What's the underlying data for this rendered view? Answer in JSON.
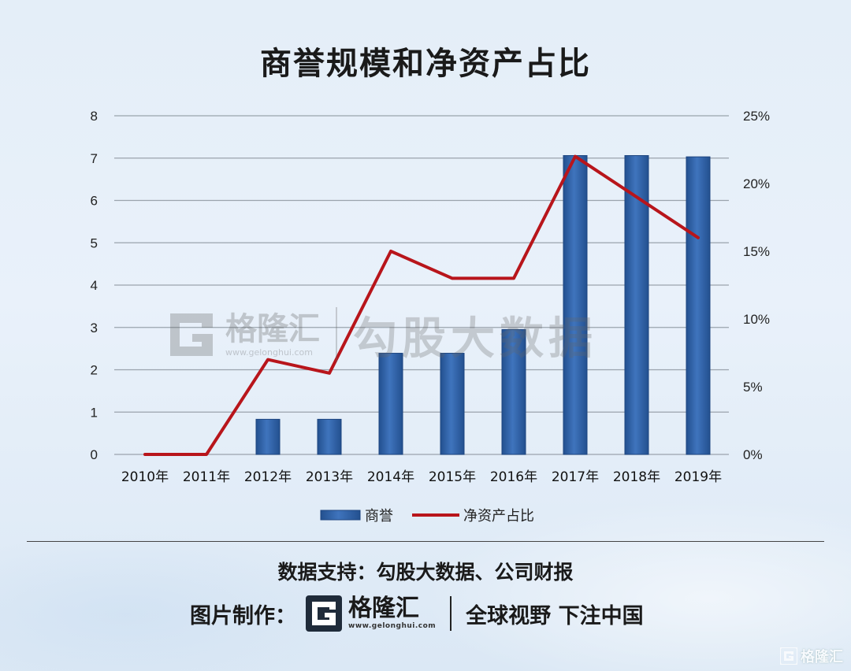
{
  "title": "商誉规模和净资产占比",
  "chart_data": {
    "type": "bar",
    "title": "商誉规模和净资产占比",
    "categories": [
      "2010年",
      "2011年",
      "2012年",
      "2013年",
      "2014年",
      "2015年",
      "2016年",
      "2017年",
      "2018年",
      "2019年"
    ],
    "series": [
      {
        "name": "商誉",
        "type": "bar",
        "axis": "left",
        "color": "#2e5fa6",
        "values": [
          0,
          0,
          0.83,
          0.83,
          2.39,
          2.39,
          2.95,
          7.06,
          7.06,
          7.03
        ]
      },
      {
        "name": "净资产占比",
        "type": "line",
        "axis": "right",
        "color": "#b8151b",
        "values": [
          0,
          0,
          7.0,
          6.0,
          15.0,
          13.0,
          13.0,
          22.0,
          19.0,
          16.0
        ]
      }
    ],
    "y_left": {
      "min": 0,
      "max": 8,
      "ticks": [
        "0",
        "1",
        "2",
        "3",
        "4",
        "5",
        "6",
        "7",
        "8"
      ]
    },
    "y_right": {
      "min": 0,
      "max": 25,
      "ticks": [
        "0%",
        "5%",
        "10%",
        "15%",
        "20%",
        "25%"
      ]
    },
    "grid": true,
    "legend": "bottom-center"
  },
  "watermark": {
    "brand": "格隆汇",
    "url": "www.gelonghui.com",
    "text": "勾股大数据"
  },
  "footer": {
    "source": "数据支持：勾股大数据、公司财报",
    "credit_label": "图片制作：",
    "brand_name": "格隆汇",
    "brand_url": "www.gelonghui.com",
    "slogan": "全球视野 下注中国",
    "corner_brand": "格隆汇"
  },
  "colors": {
    "bar": "#2e5fa6",
    "line": "#b8151b",
    "grid": "#9aa3ad"
  }
}
